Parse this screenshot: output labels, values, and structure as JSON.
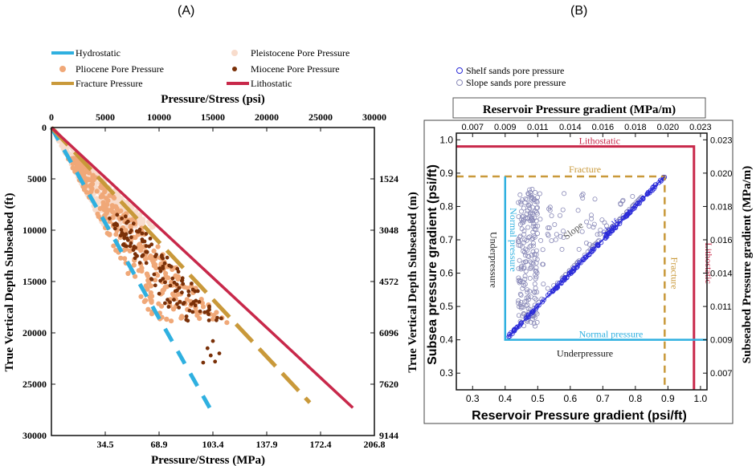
{
  "chart_data": [
    {
      "type": "scatter",
      "panel_label": "(A)",
      "title": "",
      "xlabel_top": "Pressure/Stress (psi)",
      "xlabel_bottom": "Pressure/Stress (MPa)",
      "ylabel_left": "True Vertical Depth Subseabed (ft)",
      "ylabel_right": "True Vertical Depth Subseabed (m)",
      "xlim_psi": [
        0,
        30000
      ],
      "ylim_ft": [
        0,
        30000
      ],
      "x_ticks_top": [
        "0",
        "5000",
        "10000",
        "15000",
        "20000",
        "25000",
        "30000"
      ],
      "x_ticks_bottom": [
        "34.5",
        "68.9",
        "103.4",
        "137.9",
        "172.4",
        "206.8"
      ],
      "y_ticks_left": [
        "0",
        "5000",
        "10000",
        "15000",
        "20000",
        "25000",
        "30000"
      ],
      "y_ticks_right": [
        "1524",
        "3048",
        "4572",
        "6096",
        "7620",
        "9144"
      ],
      "legend": [
        {
          "label": "Hydrostatic",
          "color": "#2fb0e0",
          "kind": "dash"
        },
        {
          "label": "Pleistocene Pore Pressure",
          "color": "#f8dccc",
          "kind": "dot"
        },
        {
          "label": "Pliocene Pore Pressure",
          "color": "#f0a878",
          "kind": "dot"
        },
        {
          "label": "Miocene Pore Pressure",
          "color": "#7a3008",
          "kind": "dot"
        },
        {
          "label": "Fracture Pressure",
          "color": "#c9993a",
          "kind": "line"
        },
        {
          "label": "Lithostatic",
          "color": "#c8284a",
          "kind": "line"
        }
      ],
      "series": [
        {
          "name": "Hydrostatic",
          "x": [
            0,
            14700
          ],
          "y": [
            0,
            27300
          ]
        },
        {
          "name": "Fracture Pressure",
          "x": [
            0,
            24000
          ],
          "y": [
            0,
            26800
          ]
        },
        {
          "name": "Lithostatic",
          "x": [
            0,
            28000
          ],
          "y": [
            0,
            27300
          ]
        }
      ]
    },
    {
      "type": "scatter",
      "panel_label": "(B)",
      "xlabel_bottom": "Reservoir Pressure gradient (psi/ft)",
      "xlabel_top": "Reservoir Pressure gradient (MPa/m)",
      "ylabel_left": "Subsea pressure gradient (psi/ft)",
      "ylabel_right": "Subseabed Pressure gradient (MPa/m)",
      "xlim": [
        0.25,
        1.02
      ],
      "ylim": [
        0.25,
        1.02
      ],
      "x_ticks_bottom": [
        "0.3",
        "0.4",
        "0.5",
        "0.6",
        "0.7",
        "0.8",
        "0.9",
        "1.0"
      ],
      "x_ticks_top": [
        "0.007",
        "0.009",
        "0.011",
        "0.014",
        "0.016",
        "0.018",
        "0.020",
        "0.023"
      ],
      "y_ticks_left": [
        "0.3",
        "0.4",
        "0.5",
        "0.6",
        "0.7",
        "0.8",
        "0.9",
        "1.0"
      ],
      "y_ticks_right": [
        "0.007",
        "0.009",
        "0.011",
        "0.014",
        "0.016",
        "0.018",
        "0.020",
        "0.023"
      ],
      "legend": [
        {
          "label": "Shelf sands pore pressure",
          "color": "#2a2ad8"
        },
        {
          "label": "Slope sands pore pressure",
          "color": "#8a8ab8"
        }
      ],
      "annotations": {
        "lithostatic_top": "Lithostatic",
        "lithostatic_side": "Lithostatic",
        "fracture_top": "Fracture",
        "fracture_side": "Fracture",
        "normal_vertical": "Normal pressure",
        "normal_horizontal": "Normal pressure",
        "underpressure_left": "Underpressure",
        "underpressure_bottom": "Underpressure",
        "slope": "Slope",
        "shelf": "Shelf"
      },
      "reference_lines": {
        "lithostatic": 0.98,
        "fracture": 0.89,
        "normal": 0.4
      },
      "shelf_trend": {
        "x": [
          0.41,
          0.89
        ],
        "y": [
          0.41,
          0.89
        ]
      }
    }
  ],
  "colors": {
    "hydrostatic": "#2fb0e0",
    "pleistocene": "#f8dccc",
    "pliocene": "#f0a878",
    "miocene": "#7a3008",
    "fracture": "#c9993a",
    "lithostatic": "#c8284a",
    "shelf": "#2a2ad8",
    "slope": "#8a8ab8",
    "normal": "#2fb0e0"
  }
}
